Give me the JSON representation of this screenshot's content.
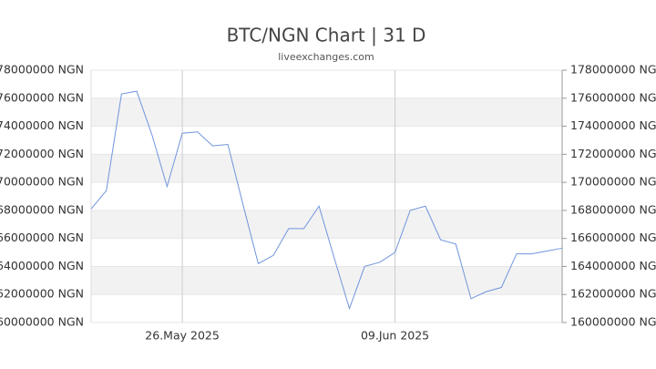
{
  "chart_data": {
    "type": "line",
    "title": "BTC/NGN Chart | 31 D",
    "subtitle": "liveexchanges.com",
    "categories": [
      null,
      null,
      null,
      null,
      null,
      null,
      "26.May 2025",
      null,
      null,
      null,
      null,
      null,
      null,
      null,
      null,
      null,
      null,
      null,
      null,
      null,
      "09.Jun 2025",
      null,
      null,
      null,
      null,
      null,
      null,
      null,
      null,
      null,
      null,
      null
    ],
    "values": [
      168100000,
      169400000,
      176300000,
      176500000,
      173400000,
      169700000,
      173500000,
      173600000,
      172600000,
      172700000,
      168400000,
      164200000,
      164800000,
      166700000,
      166700000,
      168300000,
      164600000,
      161000000,
      164000000,
      164300000,
      165000000,
      168000000,
      168300000,
      165900000,
      165600000,
      161700000,
      162200000,
      162500000,
      164900000,
      164900000,
      165100000,
      165300000
    ],
    "color": "#7094dc",
    "ylim": [
      160000000,
      178000000
    ],
    "yticks": [
      {
        "value": 160000000,
        "label": "160000000 NGN"
      },
      {
        "value": 162000000,
        "label": "162000000 NGN"
      },
      {
        "value": 164000000,
        "label": "164000000 NGN"
      },
      {
        "value": 166000000,
        "label": "166000000 NGN"
      },
      {
        "value": 168000000,
        "label": "168000000 NGN"
      },
      {
        "value": 170000000,
        "label": "170000000 NGN"
      },
      {
        "value": 172000000,
        "label": "172000000 NGN"
      },
      {
        "value": 174000000,
        "label": "174000000 NGN"
      },
      {
        "value": 176000000,
        "label": "176000000 NGN"
      },
      {
        "value": 178000000,
        "label": "178000000 NGN"
      }
    ],
    "grid": true
  }
}
